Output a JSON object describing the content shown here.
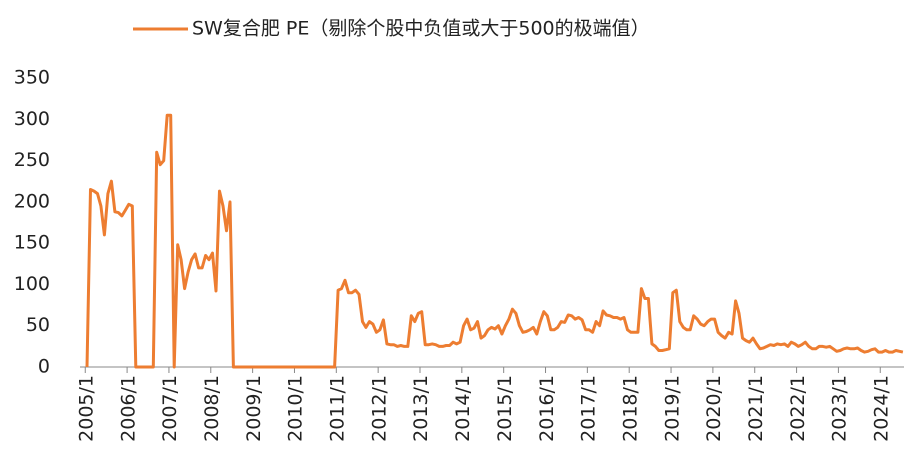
{
  "chart_data": {
    "type": "line",
    "categories": [
      "2005/1",
      null,
      null,
      null,
      null,
      null,
      null,
      null,
      null,
      null,
      null,
      null,
      "2006/1",
      null,
      null,
      null,
      null,
      null,
      null,
      null,
      null,
      null,
      null,
      null,
      "2007/1",
      null,
      null,
      null,
      null,
      null,
      null,
      null,
      null,
      null,
      null,
      null,
      "2008/1",
      null,
      null,
      null,
      null,
      null,
      null,
      null,
      null,
      null,
      null,
      null,
      "2009/1",
      null,
      null,
      null,
      null,
      null,
      null,
      null,
      null,
      null,
      null,
      null,
      "2010/1",
      null,
      null,
      null,
      null,
      null,
      null,
      null,
      null,
      null,
      null,
      null,
      "2011/1",
      null,
      null,
      null,
      null,
      null,
      null,
      null,
      null,
      null,
      null,
      null,
      "2012/1",
      null,
      null,
      null,
      null,
      null,
      null,
      null,
      null,
      null,
      null,
      null,
      "2013/1",
      null,
      null,
      null,
      null,
      null,
      null,
      null,
      null,
      null,
      null,
      null,
      "2014/1",
      null,
      null,
      null,
      null,
      null,
      null,
      null,
      null,
      null,
      null,
      null,
      "2015/1",
      null,
      null,
      null,
      null,
      null,
      null,
      null,
      null,
      null,
      null,
      null,
      "2016/1",
      null,
      null,
      null,
      null,
      null,
      null,
      null,
      null,
      null,
      null,
      null,
      "2017/1",
      null,
      null,
      null,
      null,
      null,
      null,
      null,
      null,
      null,
      null,
      null,
      "2018/1",
      null,
      null,
      null,
      null,
      null,
      null,
      null,
      null,
      null,
      null,
      null,
      "2019/1",
      null,
      null,
      null,
      null,
      null,
      null,
      null,
      null,
      null,
      null,
      null,
      "2020/1",
      null,
      null,
      null,
      null,
      null,
      null,
      null,
      null,
      null,
      null,
      null,
      "2021/1",
      null,
      null,
      null,
      null,
      null,
      null,
      null,
      null,
      null,
      null,
      null,
      "2022/1",
      null,
      null,
      null,
      null,
      null,
      null,
      null,
      null,
      null,
      null,
      null,
      "2023/1",
      null,
      null,
      null,
      null,
      null,
      null,
      null,
      null,
      null,
      null,
      null,
      "2024/1",
      null,
      null,
      null,
      null,
      null,
      null
    ],
    "series": [
      {
        "name": "SW复合肥 PE（剔除个股中负值或大于500的极端值）",
        "color": "#ED7D31",
        "values": [
          0,
          215,
          213,
          210,
          195,
          160,
          210,
          225,
          188,
          187,
          183,
          190,
          197,
          195,
          0,
          0,
          0,
          0,
          0,
          0,
          260,
          245,
          250,
          305,
          305,
          0,
          148,
          130,
          95,
          115,
          130,
          137,
          120,
          120,
          135,
          130,
          138,
          92,
          213,
          195,
          165,
          200,
          0,
          0,
          0,
          0,
          0,
          0,
          0,
          0,
          0,
          0,
          0,
          0,
          0,
          0,
          0,
          0,
          0,
          0,
          0,
          0,
          0,
          0,
          0,
          0,
          0,
          0,
          0,
          0,
          0,
          0,
          93,
          95,
          105,
          90,
          90,
          93,
          88,
          55,
          48,
          55,
          52,
          42,
          45,
          57,
          28,
          27,
          27,
          25,
          26,
          25,
          25,
          62,
          55,
          65,
          67,
          27,
          27,
          28,
          27,
          25,
          25,
          26,
          26,
          30,
          28,
          30,
          50,
          58,
          45,
          47,
          55,
          35,
          38,
          45,
          48,
          46,
          50,
          40,
          50,
          58,
          70,
          65,
          50,
          42,
          43,
          45,
          48,
          40,
          55,
          67,
          62,
          45,
          45,
          48,
          55,
          54,
          63,
          62,
          58,
          60,
          57,
          45,
          45,
          42,
          55,
          50,
          68,
          63,
          62,
          60,
          60,
          58,
          60,
          45,
          42,
          42,
          42,
          95,
          83,
          83,
          28,
          25,
          20,
          20,
          21,
          22,
          90,
          93,
          55,
          48,
          45,
          45,
          62,
          58,
          52,
          50,
          55,
          58,
          58,
          42,
          38,
          35,
          42,
          40,
          80,
          65,
          35,
          32,
          30,
          35,
          28,
          22,
          23,
          25,
          27,
          26,
          28,
          27,
          28,
          25,
          30,
          28,
          25,
          27,
          30,
          25,
          22,
          22,
          25,
          25,
          24,
          25,
          22,
          19,
          20,
          22,
          23,
          22,
          22,
          23,
          20,
          18,
          19,
          21,
          22,
          18,
          18,
          20,
          18,
          18,
          20,
          19,
          18
        ]
      }
    ],
    "ylim": [
      0,
      350
    ],
    "yticks": [
      0,
      50,
      100,
      150,
      200,
      250,
      300,
      350
    ],
    "legend": "top"
  }
}
